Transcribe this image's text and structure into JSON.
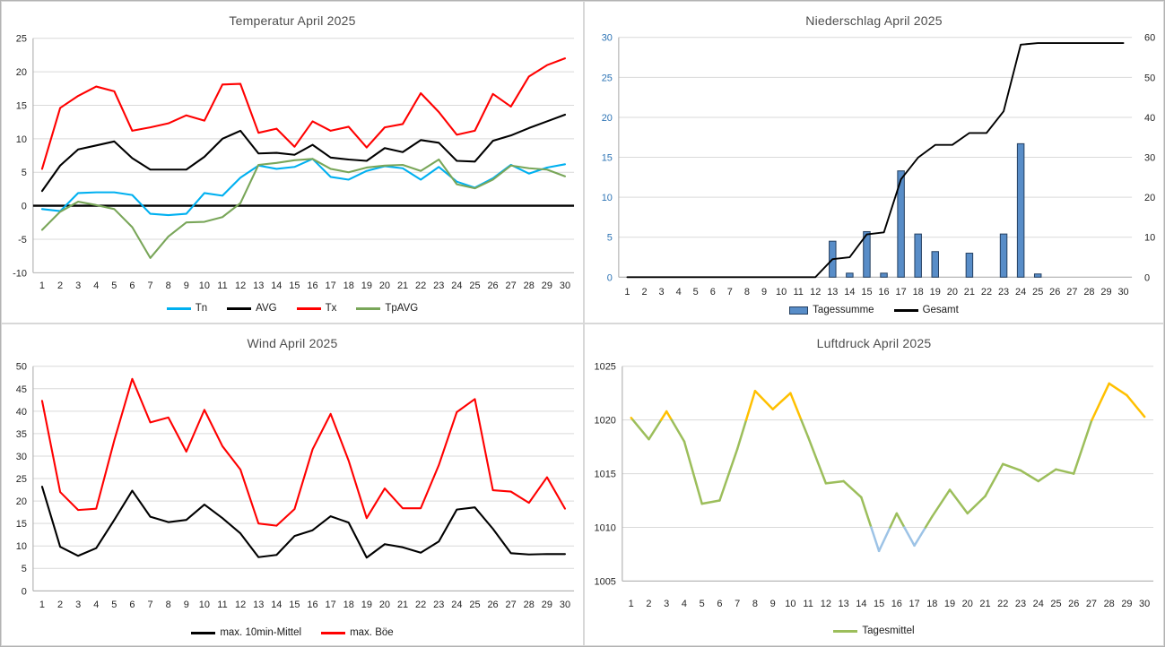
{
  "page": {
    "background": "#ffffff",
    "grid_color": "#d9d9d9",
    "axis_color": "#a6a6a6",
    "tick_color": "#262626",
    "title_color": "#4d4d4d"
  },
  "chart_data": [
    {
      "id": "temperatur",
      "type": "line",
      "title": "Temperatur April 2025",
      "categories": [
        1,
        2,
        3,
        4,
        5,
        6,
        7,
        8,
        9,
        10,
        11,
        12,
        13,
        14,
        15,
        16,
        17,
        18,
        19,
        20,
        21,
        22,
        23,
        24,
        25,
        26,
        27,
        28,
        29,
        30
      ],
      "ylim": [
        -10,
        25
      ],
      "yticks": [
        -10,
        -5,
        0,
        5,
        10,
        15,
        20,
        25
      ],
      "grid": true,
      "emphasize_zero": true,
      "legend_position": "bottom",
      "series": [
        {
          "name": "Tn",
          "color": "#00b0f0",
          "values": [
            -0.5,
            -0.8,
            1.9,
            2.0,
            2.0,
            1.6,
            -1.2,
            -1.4,
            -1.2,
            1.9,
            1.5,
            4.2,
            6.0,
            5.5,
            5.8,
            7.0,
            4.3,
            3.9,
            5.2,
            5.9,
            5.6,
            3.9,
            5.8,
            3.6,
            2.7,
            4.1,
            6.1,
            4.8,
            5.7,
            6.2
          ]
        },
        {
          "name": "AVG",
          "color": "#000000",
          "values": [
            2.2,
            6.0,
            8.4,
            9.0,
            9.6,
            7.1,
            5.4,
            5.4,
            5.4,
            7.3,
            10.0,
            11.2,
            7.8,
            7.9,
            7.6,
            9.1,
            7.2,
            6.9,
            6.7,
            8.6,
            8.0,
            9.8,
            9.4,
            6.7,
            6.6,
            9.7,
            10.5,
            11.6,
            12.6,
            13.6
          ]
        },
        {
          "name": "Tx",
          "color": "#ff0000",
          "values": [
            5.5,
            14.6,
            16.4,
            17.8,
            17.1,
            11.2,
            11.7,
            12.3,
            13.5,
            12.7,
            18.1,
            18.2,
            10.9,
            11.5,
            8.8,
            12.6,
            11.2,
            11.8,
            8.7,
            11.7,
            12.2,
            16.8,
            14.0,
            10.6,
            11.2,
            16.7,
            14.8,
            19.3,
            21.0,
            22.0
          ]
        },
        {
          "name": "TpAVG",
          "color": "#79a659",
          "values": [
            -3.6,
            -0.9,
            0.6,
            0.1,
            -0.5,
            -3.2,
            -7.8,
            -4.6,
            -2.5,
            -2.4,
            -1.7,
            0.4,
            6.1,
            6.4,
            6.8,
            7.0,
            5.5,
            5.0,
            5.7,
            6.0,
            6.1,
            5.2,
            6.9,
            3.2,
            2.6,
            3.9,
            6.0,
            5.6,
            5.4,
            4.4
          ]
        }
      ]
    },
    {
      "id": "niederschlag",
      "type": "bar+line",
      "title": "Niederschlag April 2025",
      "categories": [
        1,
        2,
        3,
        4,
        5,
        6,
        7,
        8,
        9,
        10,
        11,
        12,
        13,
        14,
        15,
        16,
        17,
        18,
        19,
        20,
        21,
        22,
        23,
        24,
        25,
        26,
        27,
        28,
        29,
        30
      ],
      "ylim_left": [
        0,
        30
      ],
      "yticks_left": [
        0,
        5,
        10,
        15,
        20,
        25,
        30
      ],
      "left_label_color": "#2e74b5",
      "ylim_right": [
        0,
        60
      ],
      "yticks_right": [
        0,
        10,
        20,
        30,
        40,
        50,
        60
      ],
      "right_label_color": "#262626",
      "grid": true,
      "legend_position": "bottom",
      "series": [
        {
          "name": "Tagessumme",
          "type": "bar",
          "axis": "left",
          "color": "#588dc8",
          "border": "#243f60",
          "values": [
            0,
            0,
            0,
            0,
            0,
            0,
            0,
            0,
            0,
            0,
            0,
            0,
            4.5,
            0.5,
            5.7,
            0.5,
            13.3,
            5.4,
            3.2,
            0,
            3.0,
            0,
            5.4,
            16.7,
            0.4,
            0,
            0,
            0,
            0,
            0
          ]
        },
        {
          "name": "Gesamt",
          "type": "line",
          "axis": "right",
          "color": "#000000",
          "values": [
            0,
            0,
            0,
            0,
            0,
            0,
            0,
            0,
            0,
            0,
            0,
            0,
            4.5,
            5.0,
            10.7,
            11.2,
            24.5,
            29.9,
            33.1,
            33.1,
            36.1,
            36.1,
            41.5,
            58.2,
            58.6,
            58.6,
            58.6,
            58.6,
            58.6,
            58.6
          ]
        }
      ]
    },
    {
      "id": "wind",
      "type": "line",
      "title": "Wind April 2025",
      "categories": [
        1,
        2,
        3,
        4,
        5,
        6,
        7,
        8,
        9,
        10,
        11,
        12,
        13,
        14,
        15,
        16,
        17,
        18,
        19,
        20,
        21,
        22,
        23,
        24,
        25,
        26,
        27,
        28,
        29,
        30
      ],
      "ylim": [
        0,
        50
      ],
      "yticks": [
        0,
        5,
        10,
        15,
        20,
        25,
        30,
        35,
        40,
        45,
        50
      ],
      "grid": true,
      "legend_position": "bottom",
      "series": [
        {
          "name": "max. 10min-Mittel",
          "color": "#000000",
          "values": [
            23.2,
            9.8,
            7.8,
            9.5,
            15.8,
            22.3,
            16.5,
            15.3,
            15.8,
            19.2,
            16.2,
            12.8,
            7.5,
            8.0,
            12.2,
            13.5,
            16.6,
            15.2,
            7.4,
            10.4,
            9.7,
            8.5,
            11.0,
            18.1,
            18.6,
            13.8,
            8.4,
            8.1,
            8.2,
            8.2
          ]
        },
        {
          "name": "max. Böe",
          "color": "#ff0000",
          "values": [
            42.3,
            22.0,
            18.0,
            18.3,
            33.5,
            47.2,
            37.5,
            38.6,
            31.0,
            40.3,
            32.2,
            27.0,
            15.0,
            14.5,
            18.2,
            31.5,
            39.4,
            29.0,
            16.2,
            22.8,
            18.4,
            18.4,
            28.0,
            39.8,
            42.7,
            22.4,
            22.1,
            19.6,
            25.3,
            18.3
          ]
        }
      ]
    },
    {
      "id": "luftdruck",
      "type": "line",
      "title": "Luftdruck April 2025",
      "categories": [
        1,
        2,
        3,
        4,
        5,
        6,
        7,
        8,
        9,
        10,
        11,
        12,
        13,
        14,
        15,
        16,
        17,
        18,
        19,
        20,
        21,
        22,
        23,
        24,
        25,
        26,
        27,
        28,
        29,
        30
      ],
      "ylim": [
        1005,
        1025
      ],
      "yticks": [
        1005,
        1010,
        1015,
        1020,
        1025
      ],
      "grid": true,
      "legend_position": "bottom",
      "series": [
        {
          "name": "Tagesmittel",
          "color": "#9cbe5b",
          "color_rules": {
            "above": {
              "threshold": 1020,
              "color": "#ffc000"
            },
            "below": {
              "threshold": 1010,
              "color": "#9dc3e6"
            }
          },
          "values": [
            1020.2,
            1018.2,
            1020.8,
            1018.0,
            1012.2,
            1012.5,
            1017.3,
            1022.7,
            1021.0,
            1022.5,
            1018.4,
            1014.1,
            1014.3,
            1012.8,
            1007.8,
            1011.3,
            1008.3,
            1011.0,
            1013.5,
            1011.3,
            1012.9,
            1015.9,
            1015.3,
            1014.3,
            1015.4,
            1015.0,
            1019.9,
            1023.4,
            1022.3,
            1020.3
          ]
        }
      ]
    }
  ]
}
